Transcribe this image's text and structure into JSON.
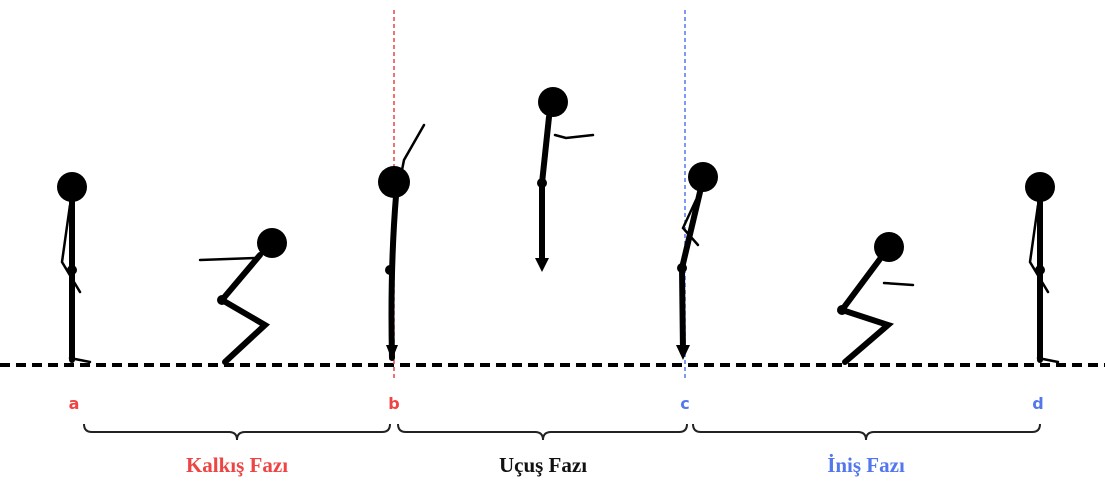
{
  "points": [
    {
      "label": "a"
    },
    {
      "label": "b"
    },
    {
      "label": "c"
    },
    {
      "label": "d"
    }
  ],
  "phases": [
    {
      "label": "Kalkış Fazı"
    },
    {
      "label": "Uçuş Fazı"
    },
    {
      "label": "İniş Fazı"
    }
  ]
}
